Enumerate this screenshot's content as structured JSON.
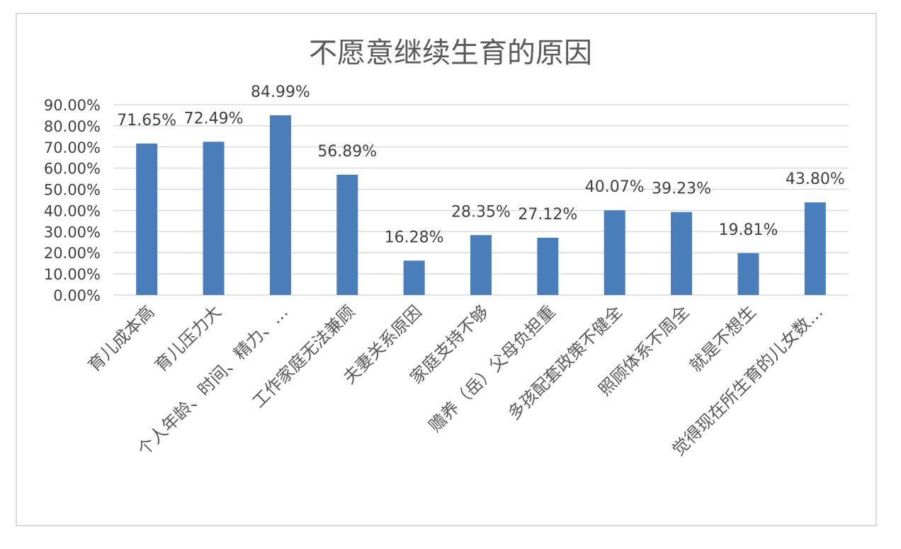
{
  "chart_data": {
    "type": "bar",
    "title": "不愿意继续生育的原因",
    "categories": [
      "育儿成本高",
      "育儿压力大",
      "个人年龄、时间、精力、…",
      "工作家庭无法兼顾",
      "夫妻关系原因",
      "家庭支持不够",
      "赡养（岳）父母负担重",
      "多孩配套政策不健全",
      "照顾体系不周全",
      "就是不想生",
      "觉得现在所生育的儿女数…"
    ],
    "values": [
      71.65,
      72.49,
      84.99,
      56.89,
      16.28,
      28.35,
      27.12,
      40.07,
      39.23,
      19.81,
      43.8
    ],
    "data_labels": [
      "71.65%",
      "72.49%",
      "84.99%",
      "56.89%",
      "16.28%",
      "28.35%",
      "27.12%",
      "40.07%",
      "39.23%",
      "19.81%",
      "43.80%"
    ],
    "y_ticks": [
      "0.00%",
      "10.00%",
      "20.00%",
      "30.00%",
      "40.00%",
      "50.00%",
      "60.00%",
      "70.00%",
      "80.00%",
      "90.00%"
    ],
    "ylim": [
      0,
      90
    ],
    "grid": true,
    "bar_color": "#4a7ebb",
    "xlabel": "",
    "ylabel": ""
  }
}
